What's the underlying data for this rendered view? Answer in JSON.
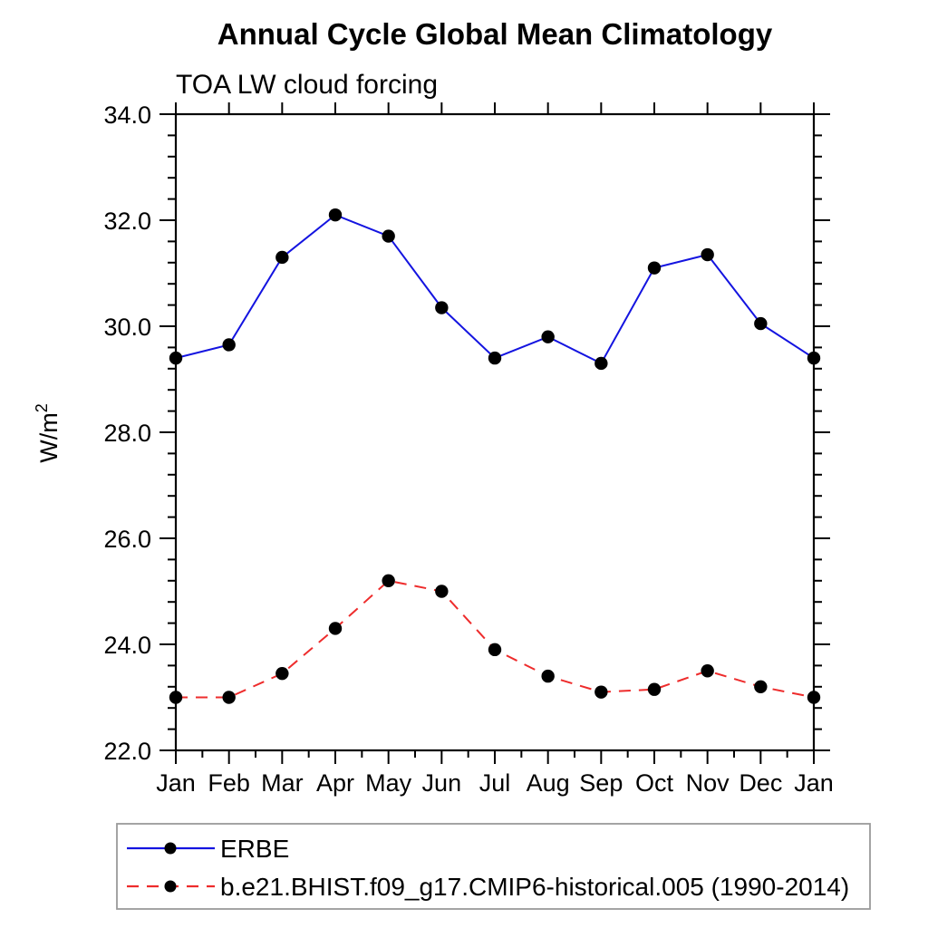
{
  "chart_data": {
    "type": "line",
    "title": "Annual Cycle Global Mean Climatology",
    "subtitle": "TOA LW cloud forcing",
    "ylabel": "W/m^2",
    "ylabel_base": "W/m",
    "ylabel_exponent": "2",
    "xlabel": "",
    "categories": [
      "Jan",
      "Feb",
      "Mar",
      "Apr",
      "May",
      "Jun",
      "Jul",
      "Aug",
      "Sep",
      "Oct",
      "Nov",
      "Dec",
      "Jan"
    ],
    "ylim": [
      22.0,
      34.0
    ],
    "y_major_step": 2.0,
    "y_minor_step": 0.4,
    "y_tick_labels": [
      "22.0",
      "24.0",
      "26.0",
      "28.0",
      "30.0",
      "32.0",
      "34.0"
    ],
    "grid": false,
    "legend_position": "bottom-left",
    "axis_color": "#000000",
    "marker_color": "#000000",
    "series": [
      {
        "name": "ERBE",
        "color": "#1414e0",
        "dash": "none",
        "marker": "circle",
        "values": [
          29.4,
          29.65,
          31.3,
          32.1,
          31.7,
          30.35,
          29.4,
          29.8,
          29.3,
          31.1,
          31.35,
          30.05,
          29.4
        ]
      },
      {
        "name": "b.e21.BHIST.f09_g17.CMIP6-historical.005 (1990-2014)",
        "color": "#ee2c2c",
        "dash": "13 9",
        "marker": "circle",
        "values": [
          23.0,
          23.0,
          23.45,
          24.3,
          25.2,
          25.0,
          23.9,
          23.4,
          23.1,
          23.15,
          23.5,
          23.2,
          23.0
        ]
      }
    ]
  }
}
